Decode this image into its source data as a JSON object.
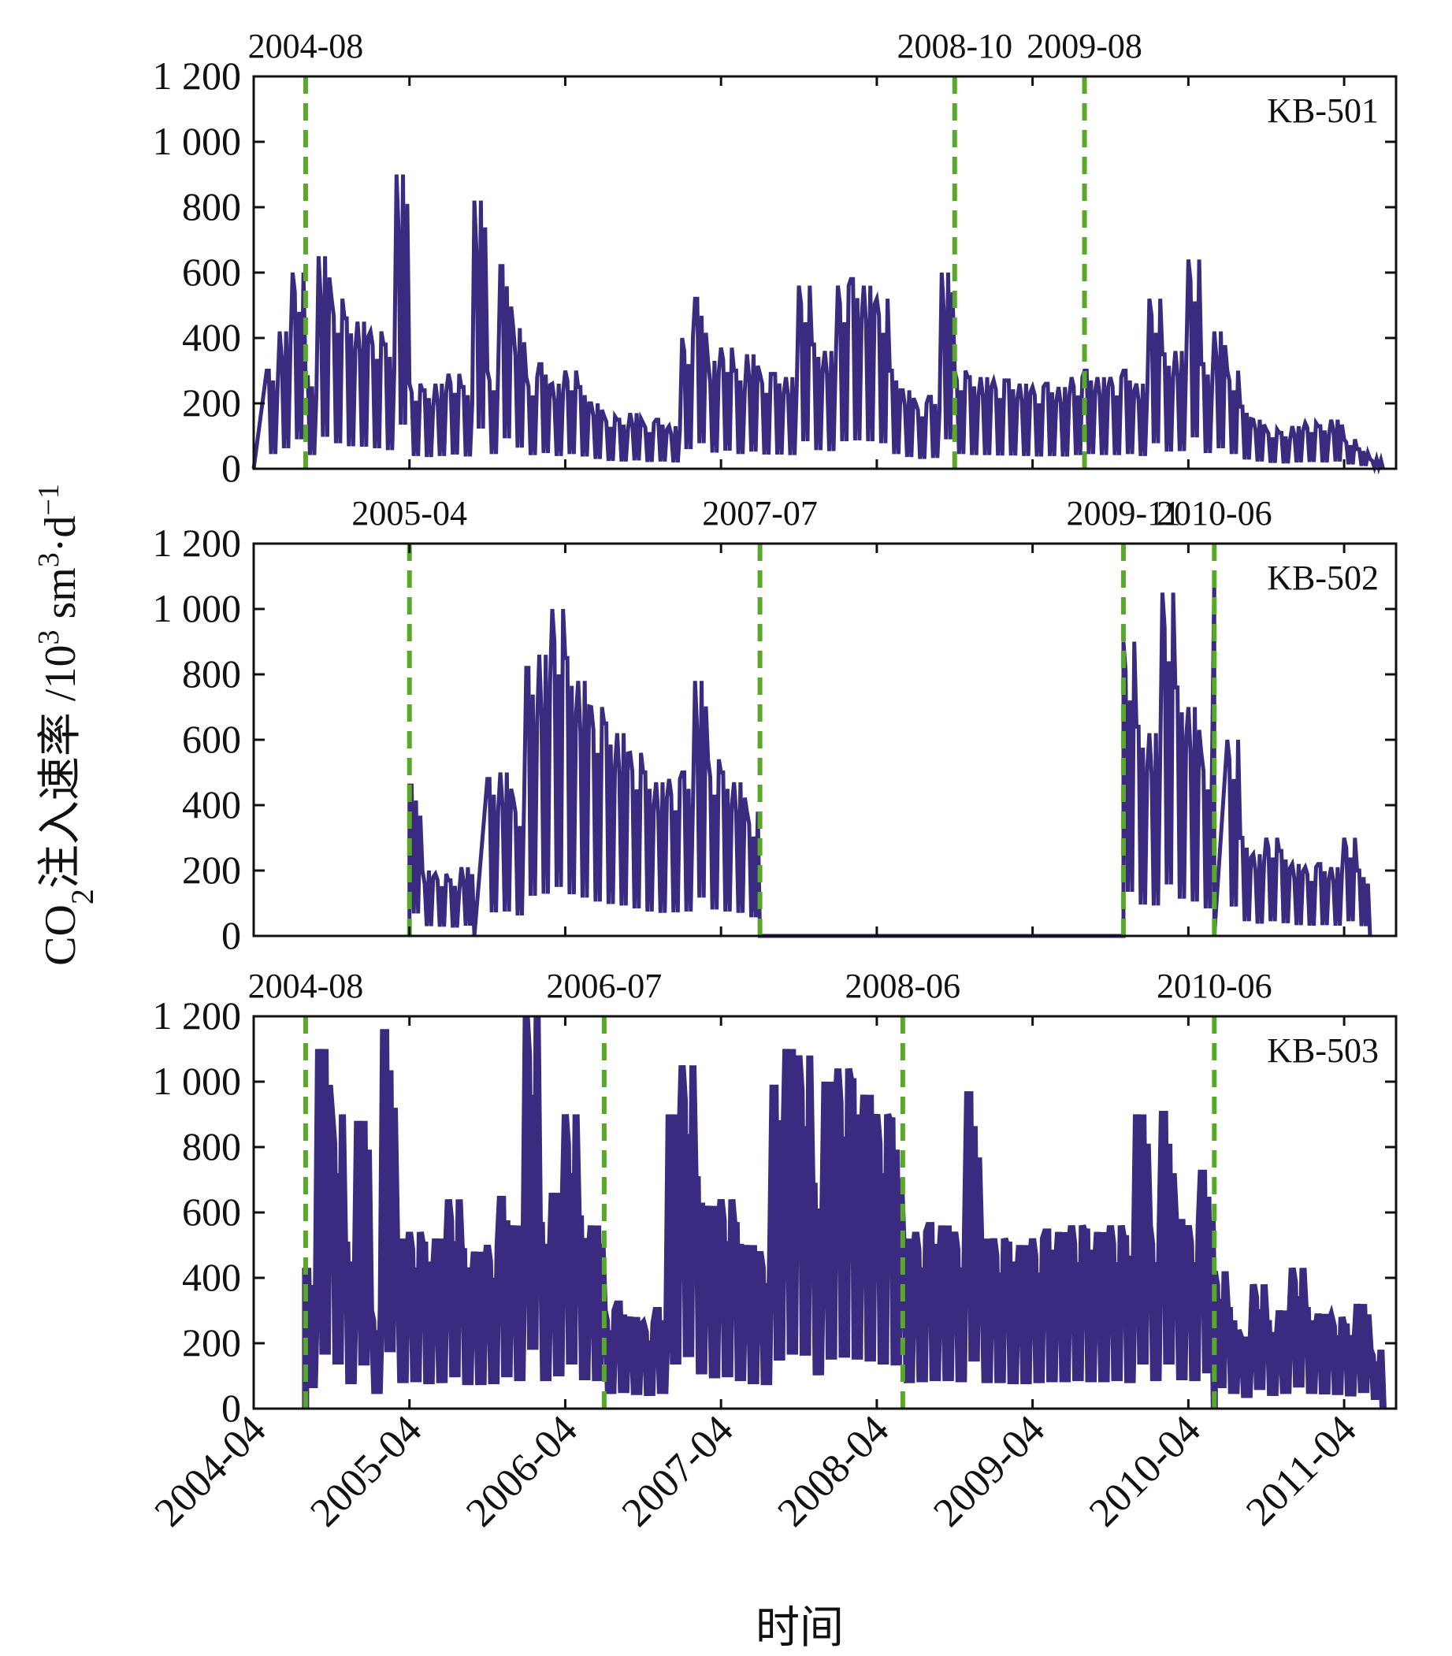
{
  "colors": {
    "series": "#3a2a80",
    "marker_line": "#5aa82a",
    "marker_line_dark": "#2c6e2a",
    "axis": "#111111"
  },
  "labels": {
    "ylabel_main": "CO",
    "ylabel_sub": "2",
    "ylabel_cn": "注入速率",
    "ylabel_unit_a": " /10",
    "ylabel_sup_a": "3",
    "ylabel_unit_b": " sm",
    "ylabel_sup_b": "3",
    "ylabel_unit_c": "·d",
    "ylabel_sup_c": "−1",
    "xlabel": "时间"
  },
  "chart_data": {
    "type": "line",
    "shared_x_ticks": [
      "2004-04",
      "2005-04",
      "2006-04",
      "2007-04",
      "2008-04",
      "2009-04",
      "2010-04",
      "2011-04"
    ],
    "x_range": [
      "2004-04",
      "2011-08"
    ],
    "panels": [
      {
        "well": "KB-501",
        "ylim": [
          0,
          1200
        ],
        "y_ticks": [
          "0",
          "200",
          "400",
          "600",
          "800",
          "1 000",
          "1 200"
        ],
        "markers": [
          {
            "date": "2004-08",
            "label": "2004-08"
          },
          {
            "date": "2008-10",
            "label": "2008-10"
          },
          {
            "date": "2009-08",
            "label": "2009-08"
          }
        ],
        "series_points": [
          [
            "2004-04",
            0
          ],
          [
            "2004-05",
            300
          ],
          [
            "2004-06",
            420
          ],
          [
            "2004-07",
            600
          ],
          [
            "2004-08",
            280
          ],
          [
            "2004-09",
            650
          ],
          [
            "2004-10",
            520
          ],
          [
            "2004-11",
            460
          ],
          [
            "2004-12",
            450
          ],
          [
            "2005-01",
            420
          ],
          [
            "2005-02",
            380
          ],
          [
            "2005-03",
            900
          ],
          [
            "2005-04",
            260
          ],
          [
            "2005-05",
            240
          ],
          [
            "2005-06",
            260
          ],
          [
            "2005-07",
            290
          ],
          [
            "2005-08",
            250
          ],
          [
            "2005-09",
            820
          ],
          [
            "2005-10",
            300
          ],
          [
            "2005-11",
            620
          ],
          [
            "2005-12",
            430
          ],
          [
            "2006-01",
            280
          ],
          [
            "2006-02",
            320
          ],
          [
            "2006-03",
            260
          ],
          [
            "2006-04",
            300
          ],
          [
            "2006-05",
            250
          ],
          [
            "2006-06",
            200
          ],
          [
            "2006-07",
            160
          ],
          [
            "2006-08",
            150
          ],
          [
            "2006-09",
            170
          ],
          [
            "2006-10",
            140
          ],
          [
            "2006-11",
            150
          ],
          [
            "2006-12",
            130
          ],
          [
            "2007-01",
            400
          ],
          [
            "2007-02",
            520
          ],
          [
            "2007-03",
            330
          ],
          [
            "2007-04",
            370
          ],
          [
            "2007-05",
            300
          ],
          [
            "2007-06",
            350
          ],
          [
            "2007-07",
            290
          ],
          [
            "2007-08",
            290
          ],
          [
            "2007-09",
            280
          ],
          [
            "2007-10",
            560
          ],
          [
            "2007-11",
            380
          ],
          [
            "2007-12",
            360
          ],
          [
            "2008-01",
            560
          ],
          [
            "2008-02",
            580
          ],
          [
            "2008-03",
            560
          ],
          [
            "2008-04",
            520
          ],
          [
            "2008-05",
            300
          ],
          [
            "2008-06",
            240
          ],
          [
            "2008-07",
            200
          ],
          [
            "2008-08",
            220
          ],
          [
            "2008-09",
            600
          ],
          [
            "2008-10",
            300
          ],
          [
            "2008-11",
            280
          ],
          [
            "2008-12",
            280
          ],
          [
            "2009-01",
            270
          ],
          [
            "2009-02",
            270
          ],
          [
            "2009-03",
            260
          ],
          [
            "2009-04",
            250
          ],
          [
            "2009-05",
            260
          ],
          [
            "2009-06",
            250
          ],
          [
            "2009-07",
            280
          ],
          [
            "2009-08",
            300
          ],
          [
            "2009-09",
            280
          ],
          [
            "2009-10",
            280
          ],
          [
            "2009-11",
            300
          ],
          [
            "2009-12",
            260
          ],
          [
            "2010-01",
            520
          ],
          [
            "2010-02",
            350
          ],
          [
            "2010-03",
            360
          ],
          [
            "2010-04",
            640
          ],
          [
            "2010-05",
            320
          ],
          [
            "2010-06",
            420
          ],
          [
            "2010-07",
            300
          ],
          [
            "2010-08",
            190
          ],
          [
            "2010-09",
            150
          ],
          [
            "2010-10",
            120
          ],
          [
            "2010-11",
            110
          ],
          [
            "2010-12",
            130
          ],
          [
            "2011-01",
            140
          ],
          [
            "2011-02",
            130
          ],
          [
            "2011-03",
            150
          ],
          [
            "2011-04",
            90
          ],
          [
            "2011-05",
            60
          ],
          [
            "2011-06",
            30
          ],
          [
            "2011-07",
            0
          ]
        ]
      },
      {
        "well": "KB-502",
        "ylim": [
          0,
          1200
        ],
        "y_ticks": [
          "0",
          "200",
          "400",
          "600",
          "800",
          "1 000",
          "1 200"
        ],
        "markers": [
          {
            "date": "2005-04",
            "label": "2005-04"
          },
          {
            "date": "2007-07",
            "label": "2007-07"
          },
          {
            "date": "2009-11",
            "label": "2009-11"
          },
          {
            "date": "2010-06",
            "label": "2010-06"
          }
        ],
        "series_points": [
          [
            "2005-04",
            0
          ],
          [
            "2005-04",
            460
          ],
          [
            "2005-05",
            200
          ],
          [
            "2005-06",
            190
          ],
          [
            "2005-07",
            170
          ],
          [
            "2005-08",
            210
          ],
          [
            "2005-09",
            0
          ],
          [
            "2005-10",
            480
          ],
          [
            "2005-11",
            500
          ],
          [
            "2005-12",
            420
          ],
          [
            "2006-01",
            820
          ],
          [
            "2006-02",
            860
          ],
          [
            "2006-03",
            1000
          ],
          [
            "2006-04",
            850
          ],
          [
            "2006-05",
            780
          ],
          [
            "2006-06",
            700
          ],
          [
            "2006-07",
            650
          ],
          [
            "2006-08",
            620
          ],
          [
            "2006-09",
            560
          ],
          [
            "2006-10",
            500
          ],
          [
            "2006-11",
            470
          ],
          [
            "2006-12",
            480
          ],
          [
            "2007-01",
            500
          ],
          [
            "2007-02",
            780
          ],
          [
            "2007-03",
            540
          ],
          [
            "2007-04",
            500
          ],
          [
            "2007-05",
            470
          ],
          [
            "2007-06",
            380
          ],
          [
            "2007-07",
            0
          ],
          [
            "2009-11",
            0
          ],
          [
            "2009-11",
            900
          ],
          [
            "2009-12",
            640
          ],
          [
            "2010-01",
            620
          ],
          [
            "2010-02",
            1050
          ],
          [
            "2010-03",
            760
          ],
          [
            "2010-04",
            700
          ],
          [
            "2010-05",
            560
          ],
          [
            "2010-06",
            1100
          ],
          [
            "2010-06",
            0
          ],
          [
            "2010-07",
            600
          ],
          [
            "2010-08",
            300
          ],
          [
            "2010-09",
            250
          ],
          [
            "2010-10",
            300
          ],
          [
            "2010-11",
            260
          ],
          [
            "2010-12",
            220
          ],
          [
            "2011-01",
            210
          ],
          [
            "2011-02",
            220
          ],
          [
            "2011-03",
            210
          ],
          [
            "2011-04",
            300
          ],
          [
            "2011-05",
            200
          ],
          [
            "2011-06",
            0
          ]
        ]
      },
      {
        "well": "KB-503",
        "ylim": [
          0,
          1200
        ],
        "y_ticks": [
          "0",
          "200",
          "400",
          "600",
          "800",
          "1 000",
          "1 200"
        ],
        "markers": [
          {
            "date": "2004-08",
            "label": "2004-08"
          },
          {
            "date": "2006-07",
            "label": "2006-07"
          },
          {
            "date": "2008-06",
            "label": "2008-06"
          },
          {
            "date": "2010-06",
            "label": "2010-06"
          }
        ],
        "series_points": [
          [
            "2004-08",
            0
          ],
          [
            "2004-08",
            420
          ],
          [
            "2004-09",
            1100
          ],
          [
            "2004-10",
            900
          ],
          [
            "2004-11",
            500
          ],
          [
            "2004-12",
            880
          ],
          [
            "2005-01",
            300
          ],
          [
            "2005-02",
            1150
          ],
          [
            "2005-03",
            520
          ],
          [
            "2005-04",
            540
          ],
          [
            "2005-05",
            500
          ],
          [
            "2005-06",
            520
          ],
          [
            "2005-07",
            640
          ],
          [
            "2005-08",
            480
          ],
          [
            "2005-09",
            480
          ],
          [
            "2005-10",
            500
          ],
          [
            "2005-11",
            640
          ],
          [
            "2005-12",
            560
          ],
          [
            "2006-01",
            1200
          ],
          [
            "2006-02",
            560
          ],
          [
            "2006-03",
            660
          ],
          [
            "2006-04",
            900
          ],
          [
            "2006-05",
            580
          ],
          [
            "2006-06",
            560
          ],
          [
            "2006-07",
            300
          ],
          [
            "2006-08",
            320
          ],
          [
            "2006-09",
            280
          ],
          [
            "2006-10",
            260
          ],
          [
            "2006-11",
            300
          ],
          [
            "2006-12",
            900
          ],
          [
            "2007-01",
            1050
          ],
          [
            "2007-02",
            700
          ],
          [
            "2007-03",
            620
          ],
          [
            "2007-04",
            640
          ],
          [
            "2007-05",
            560
          ],
          [
            "2007-06",
            500
          ],
          [
            "2007-07",
            480
          ],
          [
            "2007-08",
            980
          ],
          [
            "2007-09",
            1100
          ],
          [
            "2007-10",
            1080
          ],
          [
            "2007-11",
            680
          ],
          [
            "2007-12",
            1000
          ],
          [
            "2008-01",
            1040
          ],
          [
            "2008-02",
            1000
          ],
          [
            "2008-03",
            960
          ],
          [
            "2008-04",
            900
          ],
          [
            "2008-05",
            880
          ],
          [
            "2008-06",
            520
          ],
          [
            "2008-07",
            540
          ],
          [
            "2008-08",
            560
          ],
          [
            "2008-09",
            560
          ],
          [
            "2008-10",
            540
          ],
          [
            "2008-11",
            960
          ],
          [
            "2008-12",
            520
          ],
          [
            "2009-01",
            520
          ],
          [
            "2009-02",
            500
          ],
          [
            "2009-03",
            500
          ],
          [
            "2009-04",
            520
          ],
          [
            "2009-05",
            540
          ],
          [
            "2009-06",
            540
          ],
          [
            "2009-07",
            560
          ],
          [
            "2009-08",
            540
          ],
          [
            "2009-09",
            540
          ],
          [
            "2009-10",
            560
          ],
          [
            "2009-11",
            520
          ],
          [
            "2009-12",
            900
          ],
          [
            "2010-01",
            560
          ],
          [
            "2010-02",
            900
          ],
          [
            "2010-03",
            580
          ],
          [
            "2010-04",
            560
          ],
          [
            "2010-05",
            720
          ],
          [
            "2010-06",
            0
          ],
          [
            "2010-06",
            420
          ],
          [
            "2010-07",
            300
          ],
          [
            "2010-08",
            220
          ],
          [
            "2010-09",
            380
          ],
          [
            "2010-10",
            260
          ],
          [
            "2010-11",
            300
          ],
          [
            "2010-12",
            430
          ],
          [
            "2011-01",
            300
          ],
          [
            "2011-02",
            290
          ],
          [
            "2011-03",
            280
          ],
          [
            "2011-04",
            250
          ],
          [
            "2011-05",
            320
          ],
          [
            "2011-06",
            180
          ],
          [
            "2011-07",
            0
          ]
        ]
      }
    ]
  }
}
